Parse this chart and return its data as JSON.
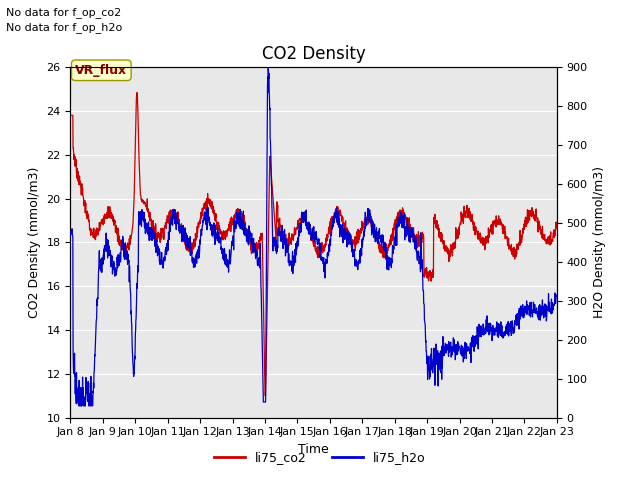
{
  "title": "CO2 Density",
  "xlabel": "Time",
  "ylabel_left": "CO2 Density (mmol/m3)",
  "ylabel_right": "H2O Density (mmol/m3)",
  "ylim_left": [
    10,
    26
  ],
  "ylim_right": [
    0,
    900
  ],
  "text_no_data_1": "No data for f_op_co2",
  "text_no_data_2": "No data for f_op_h2o",
  "legend_label_1": "li75_co2",
  "legend_label_2": "li75_h2o",
  "vr_flux_label": "VR_flux",
  "color_co2": "#cc0000",
  "color_h2o": "#0000cc",
  "background_color": "#e8e8e8",
  "figure_bg": "#ffffff",
  "xtick_labels": [
    "Jan 8",
    "Jan 9",
    "Jan 10",
    "Jan 11",
    "Jan 12",
    "Jan 13",
    "Jan 14",
    "Jan 15",
    "Jan 16",
    "Jan 17",
    "Jan 18",
    "Jan 19",
    "Jan 20",
    "Jan 21",
    "Jan 22",
    "Jan 23"
  ],
  "yticks_left": [
    10,
    12,
    14,
    16,
    18,
    20,
    22,
    24,
    26
  ],
  "yticks_right": [
    0,
    100,
    200,
    300,
    400,
    500,
    600,
    700,
    800,
    900
  ]
}
